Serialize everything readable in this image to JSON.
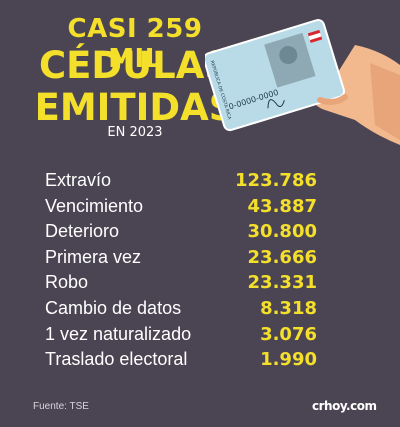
{
  "header": {
    "line1": "CASI 259 MIL",
    "line2": "CÉDULAS",
    "line3": "EMITIDAS",
    "subtitle": "EN 2023"
  },
  "card": {
    "country": "REPÚBLICA DE COSTA RICA",
    "id": "0-0000-0000"
  },
  "table": {
    "rows": [
      [
        "Extravío",
        "123.786"
      ],
      [
        "Vencimiento",
        "43.887"
      ],
      [
        "Deterioro",
        "30.800"
      ],
      [
        "Primera vez",
        "23.666"
      ],
      [
        "Robo",
        "23.331"
      ],
      [
        "Cambio de datos",
        "8.318"
      ],
      [
        "1 vez naturalizado",
        "3.076"
      ],
      [
        "Traslado electoral",
        "1.990"
      ]
    ]
  },
  "footer": {
    "source": "Fuente: TSE",
    "logo": "crhoy.com"
  }
}
